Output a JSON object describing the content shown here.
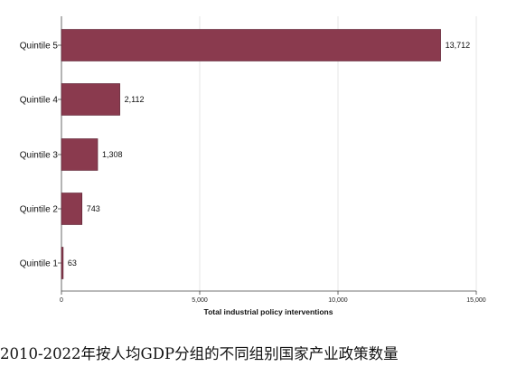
{
  "chart_data": {
    "type": "bar",
    "orientation": "horizontal",
    "categories": [
      "Quintile 1",
      "Quintile 2",
      "Quintile 3",
      "Quintile 4",
      "Quintile 5"
    ],
    "values": [
      63,
      743,
      1308,
      2112,
      13712
    ],
    "value_labels": [
      "63",
      "743",
      "1,308",
      "2,112",
      "13,712"
    ],
    "xlabel": "Total industrial policy interventions",
    "ylabel": "",
    "xlim": [
      0,
      15000
    ],
    "xticks": [
      0,
      5000,
      10000,
      15000
    ],
    "xtick_labels": [
      "0",
      "5,000",
      "10,000",
      "15,000"
    ],
    "grid": "vertical",
    "legend": "none",
    "bar_color": "#8a3a4e"
  },
  "caption": "2010-2022年按人均GDP分组的不同组别国家产业政策数量"
}
